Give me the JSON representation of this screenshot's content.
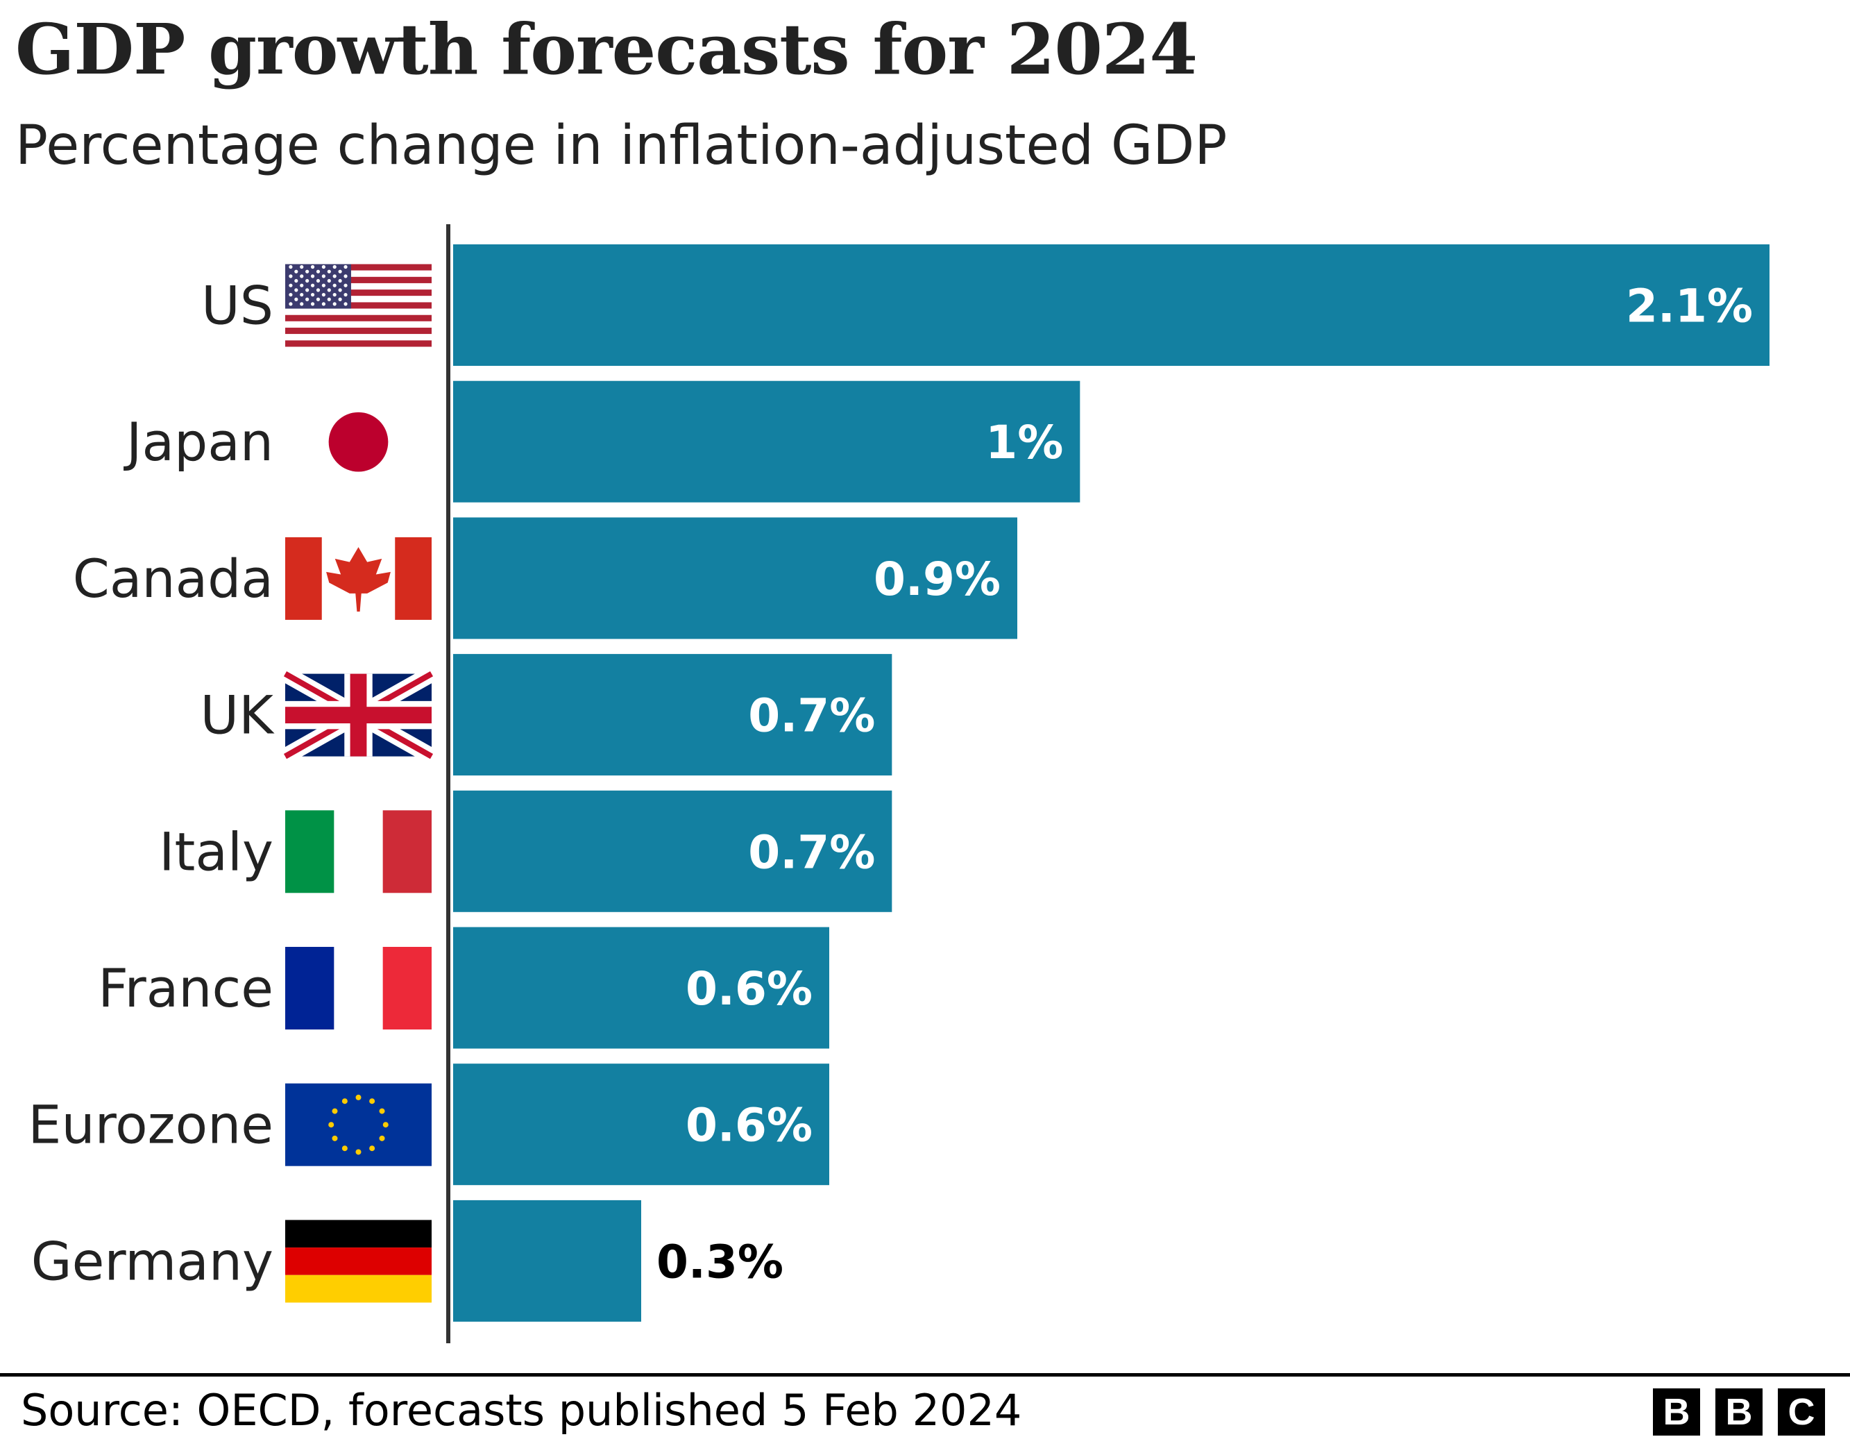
{
  "title": "GDP growth forecasts for 2024",
  "subtitle": "Percentage change in inflation-adjusted GDP",
  "source": "Source: OECD, forecasts published 5 Feb 2024",
  "logo": [
    "B",
    "B",
    "C"
  ],
  "colors": {
    "bar": "#1380a1",
    "axis": "#333333",
    "label_inside": "#ffffff",
    "label_outside": "#000000"
  },
  "chart_data": {
    "type": "bar",
    "orientation": "horizontal",
    "title": "GDP growth forecasts for 2024",
    "subtitle": "Percentage change in inflation-adjusted GDP",
    "categories": [
      "US",
      "Japan",
      "Canada",
      "UK",
      "Italy",
      "France",
      "Eurozone",
      "Germany"
    ],
    "values": [
      2.1,
      1.0,
      0.9,
      0.7,
      0.7,
      0.6,
      0.6,
      0.3
    ],
    "data_labels": [
      "2.1%",
      "1%",
      "0.9%",
      "0.7%",
      "0.7%",
      "0.6%",
      "0.6%",
      "0.3%"
    ],
    "flags": [
      "us-flag-icon",
      "japan-flag-icon",
      "canada-flag-icon",
      "uk-flag-icon",
      "italy-flag-icon",
      "france-flag-icon",
      "eu-flag-icon",
      "germany-flag-icon"
    ],
    "xlim": [
      0,
      2.1
    ],
    "grid": false,
    "legend": "none"
  }
}
